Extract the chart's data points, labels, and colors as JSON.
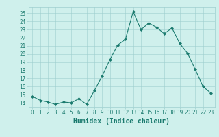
{
  "x": [
    0,
    1,
    2,
    3,
    4,
    5,
    6,
    7,
    8,
    9,
    10,
    11,
    12,
    13,
    14,
    15,
    16,
    17,
    18,
    19,
    20,
    21,
    22,
    23
  ],
  "y": [
    14.8,
    14.3,
    14.1,
    13.8,
    14.1,
    14.0,
    14.5,
    13.8,
    15.5,
    17.3,
    19.3,
    21.1,
    21.8,
    25.2,
    23.0,
    23.8,
    23.3,
    22.5,
    23.2,
    21.3,
    20.1,
    18.1,
    16.0,
    15.2
  ],
  "line_color": "#1a7a6e",
  "marker": "D",
  "marker_size": 2,
  "bg_color": "#cff0ec",
  "grid_color": "#9ecece",
  "xlabel": "Humidex (Indice chaleur)",
  "ylabel_ticks": [
    14,
    15,
    16,
    17,
    18,
    19,
    20,
    21,
    22,
    23,
    24,
    25
  ],
  "ylim": [
    13.5,
    25.8
  ],
  "xlim": [
    -0.5,
    23.5
  ],
  "xticks": [
    0,
    1,
    2,
    3,
    4,
    5,
    6,
    7,
    8,
    9,
    10,
    11,
    12,
    13,
    14,
    15,
    16,
    17,
    18,
    19,
    20,
    21,
    22,
    23
  ],
  "xtick_labels": [
    "0",
    "1",
    "2",
    "3",
    "4",
    "5",
    "6",
    "7",
    "8",
    "9",
    "10",
    "11",
    "12",
    "13",
    "14",
    "15",
    "16",
    "17",
    "18",
    "19",
    "20",
    "21",
    "22",
    "23"
  ],
  "tick_fontsize": 5.5,
  "xlabel_fontsize": 7,
  "label_color": "#1a7a6e"
}
